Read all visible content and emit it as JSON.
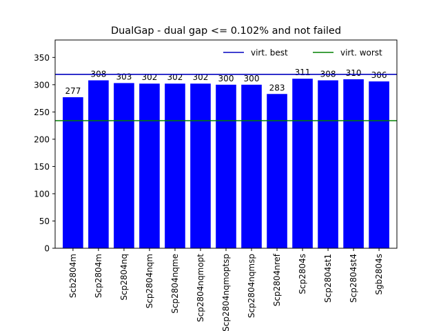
{
  "chart_data": {
    "type": "bar",
    "title": "DualGap - dual gap <= 0.102% and not failed",
    "xlabel": "",
    "ylabel": "",
    "ylim": [
      0,
      382
    ],
    "yticks": [
      0,
      50,
      100,
      150,
      200,
      250,
      300,
      350
    ],
    "categories": [
      "Scb2804m",
      "Scp2804m",
      "Scp2804nq",
      "Scp2804nqm",
      "Scp2804nqme",
      "Scp2804nqmopt",
      "Scp2804nqmoptsp",
      "Scp2804nqmsp",
      "Scp2804nref",
      "Scp2804s",
      "Scp2804st1",
      "Scp2804st4",
      "Sgb2804s"
    ],
    "values": [
      277,
      308,
      303,
      302,
      302,
      302,
      300,
      300,
      283,
      311,
      308,
      310,
      306
    ],
    "bar_color": "#0000ff",
    "reference_lines": [
      {
        "name": "virt. best",
        "value": 319,
        "color": "#0000bf"
      },
      {
        "name": "virt. worst",
        "value": 234,
        "color": "#008000"
      }
    ],
    "legend_position": "top-right",
    "grid": false
  }
}
